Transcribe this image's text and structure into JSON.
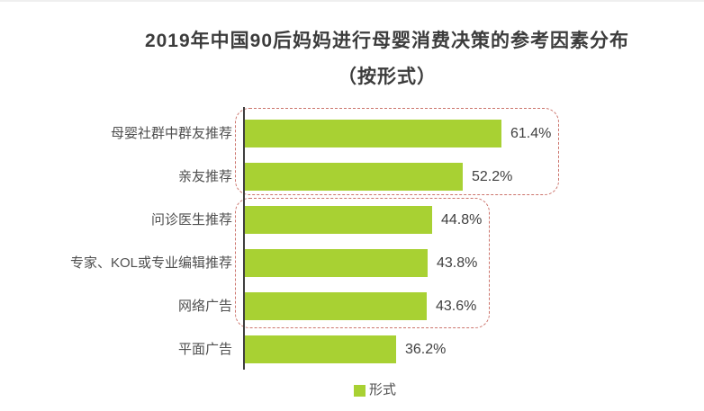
{
  "title": {
    "line1": "2019年中国90后妈妈进行母婴消费决策的参考因素分布",
    "line2": "（按形式）"
  },
  "chart_data": {
    "type": "bar",
    "orientation": "horizontal",
    "title": "2019年中国90后妈妈进行母婴消费决策的参考因素分布（按形式）",
    "categories": [
      "母婴社群中群友推荐",
      "亲友推荐",
      "问诊医生推荐",
      "专家、KOL或专业编辑推荐",
      "网络广告",
      "平面广告"
    ],
    "values": [
      61.4,
      52.2,
      44.8,
      43.8,
      43.6,
      36.2
    ],
    "value_labels": [
      "61.4%",
      "52.2%",
      "44.8%",
      "43.8%",
      "43.6%",
      "36.2%"
    ],
    "unit": "%",
    "xlim": [
      0,
      66
    ],
    "grid": false,
    "legend": {
      "label": "形式",
      "position": "bottom"
    },
    "annotation_groups": [
      {
        "rows": [
          0,
          1
        ],
        "style": "red-dashed-rounded-box"
      },
      {
        "rows": [
          2,
          3,
          4
        ],
        "style": "red-dashed-rounded-box"
      }
    ]
  },
  "colors": {
    "bar": "#a8d133",
    "group_border": "#cc746c",
    "axis": "#3f3f3f",
    "title_text": "#3c3c3c",
    "category_text": "#4f4f4f",
    "value_text": "#404040"
  }
}
